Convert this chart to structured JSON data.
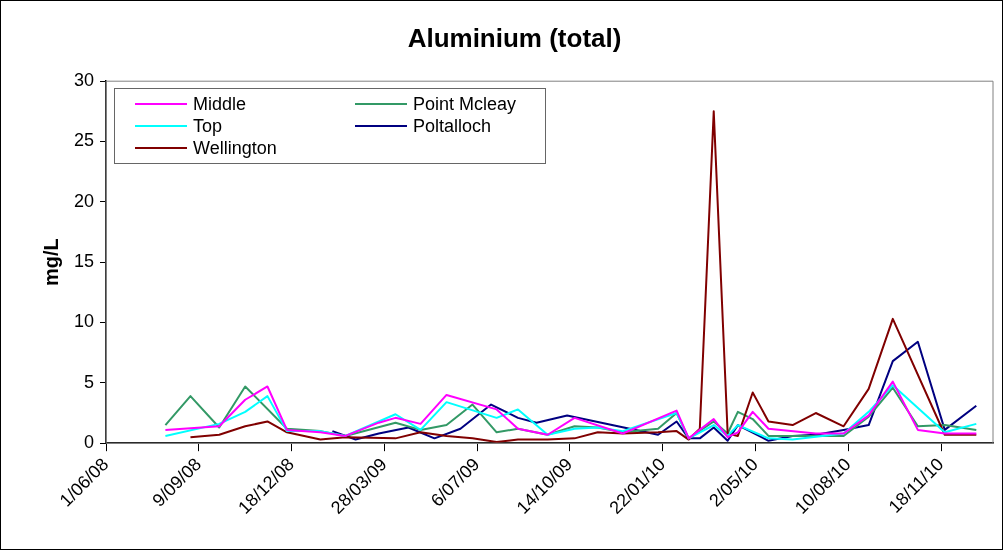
{
  "chart_data": {
    "type": "line",
    "title": "Aluminium (total)",
    "ylabel": "mg/L",
    "xlim": [
      "2008-06-01",
      "2011-01-13"
    ],
    "xticks": [
      {
        "value": "2008-06-01",
        "label": "1/06/08"
      },
      {
        "value": "2008-09-09",
        "label": "9/09/08"
      },
      {
        "value": "2008-12-18",
        "label": "18/12/08"
      },
      {
        "value": "2009-03-28",
        "label": "28/03/09"
      },
      {
        "value": "2009-07-06",
        "label": "6/07/09"
      },
      {
        "value": "2009-10-14",
        "label": "14/10/09"
      },
      {
        "value": "2010-01-22",
        "label": "22/01/10"
      },
      {
        "value": "2010-05-02",
        "label": "2/05/10"
      },
      {
        "value": "2010-08-10",
        "label": "10/08/10"
      },
      {
        "value": "2010-11-18",
        "label": "18/11/10"
      }
    ],
    "ylim": [
      0,
      30
    ],
    "yticks": [
      0,
      5,
      10,
      15,
      20,
      25,
      30
    ],
    "legend": "top left",
    "marker": "none",
    "line_style": "solid",
    "series": [
      {
        "name": "Middle",
        "color": "#ff00ff",
        "x": [
          "2008-08-04",
          "2008-10-01",
          "2008-10-29",
          "2008-11-22",
          "2008-12-13",
          "2009-01-18",
          "2009-02-14",
          "2009-03-22",
          "2009-04-09",
          "2009-05-06",
          "2009-06-03",
          "2009-07-27",
          "2009-08-19",
          "2009-09-20",
          "2009-10-19",
          "2009-12-10",
          "2010-02-06",
          "2010-02-19",
          "2010-03-18",
          "2010-04-02",
          "2010-04-13",
          "2010-04-29",
          "2010-05-16",
          "2010-07-06",
          "2010-08-05",
          "2010-09-01",
          "2010-09-27",
          "2010-10-24",
          "2010-11-22",
          "2010-12-26"
        ],
        "values": [
          1.1,
          1.4,
          3.6,
          4.7,
          1.1,
          0.9,
          0.6,
          1.7,
          2.1,
          1.6,
          4.0,
          2.8,
          1.2,
          0.7,
          2.1,
          0.8,
          2.7,
          0.4,
          2.0,
          0.5,
          0.9,
          2.6,
          1.2,
          0.8,
          0.8,
          2.3,
          5.1,
          1.1,
          0.8,
          0.8
        ]
      },
      {
        "name": "Top",
        "color": "#00ffff",
        "x": [
          "2008-08-04",
          "2008-10-01",
          "2008-10-29",
          "2008-11-22",
          "2008-12-13",
          "2009-01-18",
          "2009-02-14",
          "2009-04-09",
          "2009-05-06",
          "2009-06-03",
          "2009-07-27",
          "2009-08-19",
          "2009-09-20",
          "2009-10-19",
          "2009-11-13",
          "2009-12-10",
          "2010-02-06",
          "2010-02-19",
          "2010-03-18",
          "2010-04-02",
          "2010-04-13",
          "2010-05-16",
          "2010-06-11",
          "2010-08-05",
          "2010-09-01",
          "2010-09-27",
          "2010-11-22",
          "2010-12-26"
        ],
        "values": [
          0.6,
          1.6,
          2.6,
          3.9,
          1.0,
          1.0,
          0.6,
          2.4,
          1.1,
          3.4,
          2.1,
          2.8,
          0.7,
          1.2,
          1.3,
          1.0,
          2.5,
          0.4,
          1.5,
          0.6,
          1.5,
          0.4,
          0.3,
          0.8,
          2.6,
          4.8,
          0.9,
          1.6
        ]
      },
      {
        "name": "Wellington",
        "color": "#800000",
        "x": [
          "2008-08-31",
          "2008-10-01",
          "2008-10-29",
          "2008-11-22",
          "2008-12-13",
          "2009-01-18",
          "2009-02-14",
          "2009-04-09",
          "2009-05-06",
          "2009-06-03",
          "2009-07-01",
          "2009-07-27",
          "2009-08-19",
          "2009-09-20",
          "2009-10-19",
          "2009-11-13",
          "2009-12-10",
          "2010-01-17",
          "2010-02-06",
          "2010-02-19",
          "2010-03-03",
          "2010-03-18",
          "2010-04-02",
          "2010-04-13",
          "2010-04-29",
          "2010-05-16",
          "2010-06-11",
          "2010-07-06",
          "2010-08-05",
          "2010-09-01",
          "2010-09-27",
          "2010-11-22",
          "2010-12-26"
        ],
        "values": [
          0.5,
          0.7,
          1.4,
          1.8,
          0.9,
          0.3,
          0.5,
          0.4,
          0.9,
          0.6,
          0.4,
          0.1,
          0.3,
          0.3,
          0.4,
          0.9,
          0.8,
          0.9,
          1.0,
          0.3,
          1.2,
          27.5,
          0.8,
          0.6,
          4.2,
          1.8,
          1.5,
          2.5,
          1.4,
          4.5,
          10.3,
          0.7,
          0.7
        ]
      },
      {
        "name": "Point Mcleay",
        "color": "#339966",
        "x": [
          "2008-08-04",
          "2008-08-31",
          "2008-10-01",
          "2008-10-29",
          "2008-12-13",
          "2009-01-18",
          "2009-02-14",
          "2009-04-09",
          "2009-05-06",
          "2009-06-03",
          "2009-07-01",
          "2009-07-27",
          "2009-08-19",
          "2009-09-20",
          "2009-10-19",
          "2009-11-13",
          "2009-12-10",
          "2010-01-17",
          "2010-02-06",
          "2010-02-19",
          "2010-03-18",
          "2010-04-02",
          "2010-04-13",
          "2010-04-29",
          "2010-05-16",
          "2010-08-05",
          "2010-09-01",
          "2010-09-27",
          "2010-10-24",
          "2010-11-22",
          "2010-12-26"
        ],
        "values": [
          1.5,
          3.9,
          1.3,
          4.7,
          1.2,
          1.0,
          0.6,
          1.7,
          1.1,
          1.5,
          3.2,
          0.9,
          1.2,
          0.7,
          1.4,
          1.3,
          0.9,
          1.2,
          2.5,
          0.4,
          1.8,
          0.8,
          2.6,
          2.0,
          0.6,
          0.6,
          2.2,
          4.6,
          1.4,
          1.5,
          1.1
        ]
      },
      {
        "name": "Poltalloch",
        "color": "#000080",
        "x": [
          "2009-01-31",
          "2009-02-25",
          "2009-03-22",
          "2009-04-23",
          "2009-05-21",
          "2009-06-18",
          "2009-07-21",
          "2009-08-19",
          "2009-09-08",
          "2009-10-11",
          "2010-01-17",
          "2010-02-06",
          "2010-02-19",
          "2010-03-03",
          "2010-03-18",
          "2010-04-02",
          "2010-04-13",
          "2010-05-16",
          "2010-06-11",
          "2010-07-06",
          "2010-08-05",
          "2010-09-01",
          "2010-09-27",
          "2010-10-24",
          "2010-11-22",
          "2010-12-26"
        ],
        "values": [
          1.0,
          0.3,
          0.8,
          1.3,
          0.4,
          1.2,
          3.2,
          2.1,
          1.7,
          2.3,
          0.7,
          1.8,
          0.4,
          0.4,
          1.3,
          0.2,
          1.5,
          0.2,
          0.6,
          0.7,
          1.1,
          1.5,
          6.8,
          8.4,
          1.1,
          3.1
        ]
      }
    ]
  }
}
